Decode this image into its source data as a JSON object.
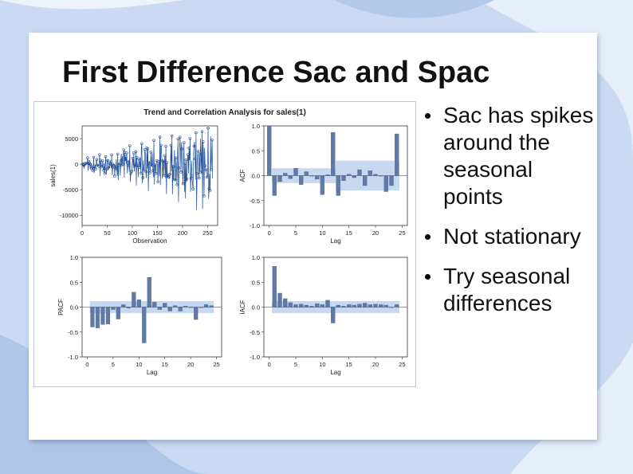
{
  "slide": {
    "title": "First Difference Sac and Spac",
    "bullets": [
      "Sac has spikes around the seasonal points",
      "Not stationary",
      "Try seasonal differences"
    ]
  },
  "colors": {
    "background": "#c5d6f0",
    "series": "#1f4e9a",
    "bar": "#5f7aa6",
    "band": "#b5cbe8"
  },
  "chart_data": [
    {
      "type": "line",
      "panel": "series",
      "title": "Trend and Correlation Analysis for sales(1)",
      "xlabel": "Observation",
      "ylabel": "sales(1)",
      "xlim": [
        0,
        270
      ],
      "ylim": [
        -12000,
        7500
      ],
      "x_ticks": [
        "0",
        "50",
        "100",
        "150",
        "200",
        "250"
      ],
      "y_ticks": [
        "5000",
        "0",
        "-5000",
        "-10000"
      ],
      "n_obs": 260
    },
    {
      "type": "bar",
      "panel": "ACF",
      "xlabel": "Lag",
      "ylabel": "ACF",
      "ylim": [
        -1.0,
        1.0
      ],
      "x_ticks": [
        "0",
        "5",
        "10",
        "15",
        "20",
        "25"
      ],
      "y_ticks": [
        "1.0",
        "0.5",
        "0.0",
        "-0.5",
        "-1.0"
      ],
      "lags": [
        0,
        1,
        2,
        3,
        4,
        5,
        6,
        7,
        8,
        9,
        10,
        11,
        12,
        13,
        14,
        15,
        16,
        17,
        18,
        19,
        20,
        21,
        22,
        23,
        24
      ],
      "values": [
        1.0,
        -0.4,
        -0.12,
        0.05,
        -0.06,
        0.15,
        -0.18,
        0.08,
        0.0,
        -0.07,
        -0.38,
        0.02,
        0.87,
        -0.4,
        -0.1,
        0.03,
        -0.04,
        0.12,
        -0.2,
        0.1,
        0.03,
        0.0,
        -0.32,
        -0.2,
        0.84
      ],
      "band": [
        0.15,
        0.3
      ]
    },
    {
      "type": "bar",
      "panel": "PACF",
      "xlabel": "Lag",
      "ylabel": "PACF",
      "ylim": [
        -1.0,
        1.0
      ],
      "x_ticks": [
        "0",
        "5",
        "10",
        "15",
        "20",
        "25"
      ],
      "y_ticks": [
        "1.0",
        "0.5",
        "0.0",
        "-0.5",
        "-1.0"
      ],
      "lags": [
        1,
        2,
        3,
        4,
        5,
        6,
        7,
        8,
        9,
        10,
        11,
        12,
        13,
        14,
        15,
        16,
        17,
        18,
        19,
        20,
        21,
        22,
        23,
        24
      ],
      "values": [
        -0.4,
        -0.42,
        -0.35,
        -0.34,
        -0.05,
        -0.24,
        0.05,
        -0.02,
        0.3,
        0.15,
        -0.72,
        0.6,
        0.1,
        -0.05,
        0.08,
        -0.08,
        0.03,
        -0.08,
        0.02,
        0.0,
        -0.25,
        0.0,
        0.05,
        0.03
      ],
      "band": 0.12
    },
    {
      "type": "bar",
      "panel": "IACF",
      "xlabel": "Lag",
      "ylabel": "IACF",
      "ylim": [
        -1.0,
        1.0
      ],
      "x_ticks": [
        "0",
        "5",
        "10",
        "15",
        "20",
        "25"
      ],
      "y_ticks": [
        "1.0",
        "0.5",
        "0.0",
        "-0.5",
        "-1.0"
      ],
      "lags": [
        1,
        2,
        3,
        4,
        5,
        6,
        7,
        8,
        9,
        10,
        11,
        12,
        13,
        14,
        15,
        16,
        17,
        18,
        19,
        20,
        21,
        22,
        23,
        24
      ],
      "values": [
        0.82,
        0.28,
        0.17,
        0.09,
        0.05,
        0.06,
        0.04,
        0.02,
        0.07,
        0.05,
        0.14,
        -0.32,
        0.04,
        0.02,
        0.05,
        0.04,
        0.06,
        0.08,
        0.05,
        0.06,
        0.05,
        0.04,
        0.0,
        0.05
      ],
      "band": 0.12
    }
  ]
}
